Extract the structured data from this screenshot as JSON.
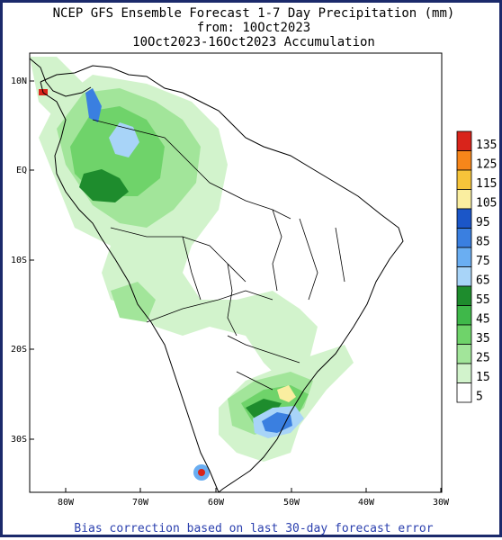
{
  "title": {
    "line1": "NCEP GFS Ensemble Forecast 1-7 Day Precipitation (mm)",
    "line2": "from: 10Oct2023",
    "line3": "10Oct2023-16Oct2023 Accumulation"
  },
  "footer": "Bias correction based on last 30-day forecast error",
  "axes": {
    "lat_ticks": [
      "10N",
      "EQ",
      "10S",
      "20S",
      "30S"
    ],
    "lon_ticks": [
      "80W",
      "70W",
      "60W",
      "50W",
      "40W",
      "30W"
    ]
  },
  "legend": {
    "levels": [
      "135",
      "125",
      "115",
      "105",
      "95",
      "85",
      "75",
      "65",
      "55",
      "45",
      "35",
      "25",
      "15",
      "5"
    ],
    "colors": [
      "#d9241b",
      "#f7861a",
      "#f6c43a",
      "#faeea0",
      "#1b56c8",
      "#3a7fe0",
      "#6aaef2",
      "#a8d4f8",
      "#1e8c2d",
      "#3fb84a",
      "#6fd36a",
      "#a2e59a",
      "#d2f3cc",
      "#ffffff"
    ]
  },
  "map_colors": {
    "light_green": "#d2f3cc",
    "mid_green": "#a2e59a",
    "green": "#6fd36a",
    "dark_green": "#1e8c2d",
    "light_blue": "#a8d4f8",
    "blue": "#3a7fe0",
    "yellow": "#faeea0",
    "red": "#d9241b"
  }
}
